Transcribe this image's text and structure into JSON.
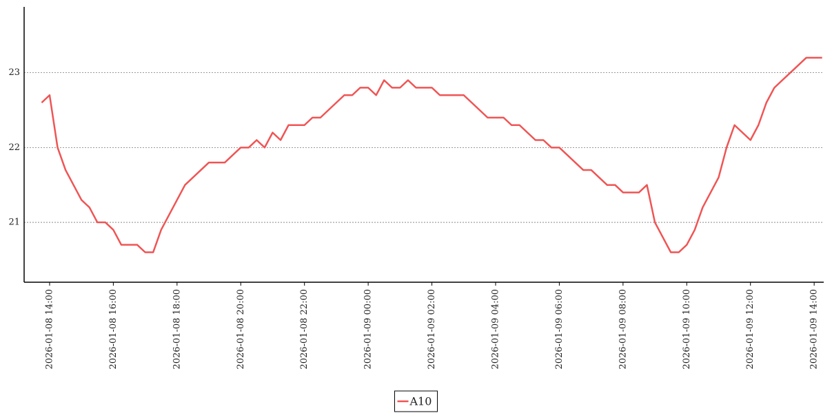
{
  "chart_data": {
    "type": "line",
    "x": [
      "2026-01-08 13:45",
      "2026-01-08 14:00",
      "2026-01-08 14:15",
      "2026-01-08 14:30",
      "2026-01-08 14:45",
      "2026-01-08 15:00",
      "2026-01-08 15:15",
      "2026-01-08 15:30",
      "2026-01-08 15:45",
      "2026-01-08 16:00",
      "2026-01-08 16:15",
      "2026-01-08 16:30",
      "2026-01-08 16:45",
      "2026-01-08 17:00",
      "2026-01-08 17:15",
      "2026-01-08 17:30",
      "2026-01-08 17:45",
      "2026-01-08 18:00",
      "2026-01-08 18:15",
      "2026-01-08 18:30",
      "2026-01-08 18:45",
      "2026-01-08 19:00",
      "2026-01-08 19:15",
      "2026-01-08 19:30",
      "2026-01-08 19:45",
      "2026-01-08 20:00",
      "2026-01-08 20:15",
      "2026-01-08 20:30",
      "2026-01-08 20:45",
      "2026-01-08 21:00",
      "2026-01-08 21:15",
      "2026-01-08 21:30",
      "2026-01-08 21:45",
      "2026-01-08 22:00",
      "2026-01-08 22:15",
      "2026-01-08 22:30",
      "2026-01-08 22:45",
      "2026-01-08 23:00",
      "2026-01-08 23:15",
      "2026-01-08 23:30",
      "2026-01-08 23:45",
      "2026-01-09 00:00",
      "2026-01-09 00:15",
      "2026-01-09 00:30",
      "2026-01-09 00:45",
      "2026-01-09 01:00",
      "2026-01-09 01:15",
      "2026-01-09 01:30",
      "2026-01-09 01:45",
      "2026-01-09 02:00",
      "2026-01-09 02:15",
      "2026-01-09 02:30",
      "2026-01-09 02:45",
      "2026-01-09 03:00",
      "2026-01-09 03:15",
      "2026-01-09 03:30",
      "2026-01-09 03:45",
      "2026-01-09 04:00",
      "2026-01-09 04:15",
      "2026-01-09 04:30",
      "2026-01-09 04:45",
      "2026-01-09 05:00",
      "2026-01-09 05:15",
      "2026-01-09 05:30",
      "2026-01-09 05:45",
      "2026-01-09 06:00",
      "2026-01-09 06:15",
      "2026-01-09 06:30",
      "2026-01-09 06:45",
      "2026-01-09 07:00",
      "2026-01-09 07:15",
      "2026-01-09 07:30",
      "2026-01-09 07:45",
      "2026-01-09 08:00",
      "2026-01-09 08:15",
      "2026-01-09 08:30",
      "2026-01-09 08:45",
      "2026-01-09 09:00",
      "2026-01-09 09:15",
      "2026-01-09 09:30",
      "2026-01-09 09:45",
      "2026-01-09 10:00",
      "2026-01-09 10:15",
      "2026-01-09 10:30",
      "2026-01-09 10:45",
      "2026-01-09 11:00",
      "2026-01-09 11:15",
      "2026-01-09 11:30",
      "2026-01-09 11:45",
      "2026-01-09 12:00",
      "2026-01-09 12:15",
      "2026-01-09 12:30",
      "2026-01-09 12:45",
      "2026-01-09 13:00",
      "2026-01-09 13:15",
      "2026-01-09 13:30",
      "2026-01-09 13:45",
      "2026-01-09 14:00",
      "2026-01-09 14:15"
    ],
    "series": [
      {
        "name": "A10",
        "color": "#f05454",
        "values": [
          22.6,
          22.7,
          22.0,
          21.7,
          21.5,
          21.3,
          21.2,
          21.0,
          21.0,
          20.9,
          20.7,
          20.7,
          20.7,
          20.6,
          20.6,
          20.9,
          21.1,
          21.3,
          21.5,
          21.6,
          21.7,
          21.8,
          21.8,
          21.8,
          21.9,
          22.0,
          22.0,
          22.1,
          22.0,
          22.2,
          22.1,
          22.3,
          22.3,
          22.3,
          22.4,
          22.4,
          22.5,
          22.6,
          22.7,
          22.7,
          22.8,
          22.8,
          22.7,
          22.9,
          22.8,
          22.8,
          22.9,
          22.8,
          22.8,
          22.8,
          22.7,
          22.7,
          22.7,
          22.7,
          22.6,
          22.5,
          22.4,
          22.4,
          22.4,
          22.3,
          22.3,
          22.2,
          22.1,
          22.1,
          22.0,
          22.0,
          21.9,
          21.8,
          21.7,
          21.7,
          21.6,
          21.5,
          21.5,
          21.4,
          21.4,
          21.4,
          21.5,
          21.0,
          20.8,
          20.6,
          20.6,
          20.7,
          20.9,
          21.2,
          21.4,
          21.6,
          22.0,
          22.3,
          22.2,
          22.1,
          22.3,
          22.6,
          22.8,
          22.9,
          23.0,
          23.1,
          23.2,
          23.2,
          23.2
        ]
      }
    ],
    "xlim": [
      "2026-01-08 13:12",
      "2026-01-09 14:18"
    ],
    "xticks": [
      "2026-01-08 14:00",
      "2026-01-08 16:00",
      "2026-01-08 18:00",
      "2026-01-08 20:00",
      "2026-01-08 22:00",
      "2026-01-09 00:00",
      "2026-01-09 02:00",
      "2026-01-09 04:00",
      "2026-01-09 06:00",
      "2026-01-09 08:00",
      "2026-01-09 10:00",
      "2026-01-09 12:00",
      "2026-01-09 14:00"
    ],
    "ylim": [
      20.2,
      23.88
    ],
    "yticks": [
      21,
      22,
      23
    ],
    "grid": true,
    "legend": "bottom"
  }
}
